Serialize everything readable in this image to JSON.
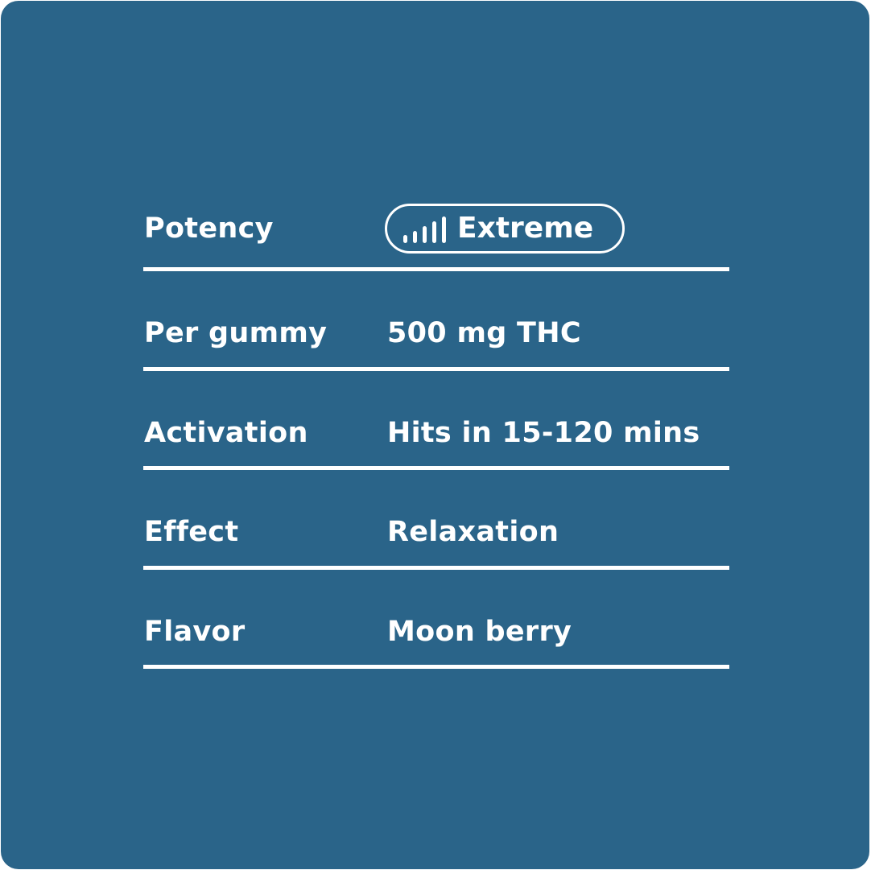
{
  "colors": {
    "background": "#2a6489",
    "foreground": "#ffffff"
  },
  "rows": [
    {
      "label": "Potency",
      "value": "Extreme",
      "badge": true,
      "icon": "signal-bars-icon",
      "level": "5/5"
    },
    {
      "label": "Per gummy",
      "value": "500 mg THC"
    },
    {
      "label": "Activation",
      "value": "Hits in 15-120 mins"
    },
    {
      "label": "Effect",
      "value": "Relaxation"
    },
    {
      "label": "Flavor",
      "value": "Moon berry"
    }
  ]
}
